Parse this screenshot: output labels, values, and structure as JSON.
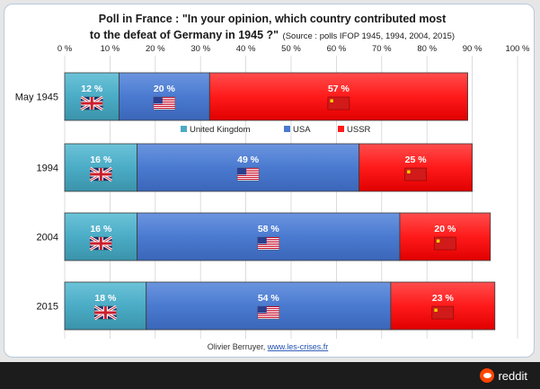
{
  "chart_data": {
    "type": "bar",
    "orientation": "horizontal",
    "stacked": true,
    "title_line1": "Poll in France : \"In your opinion, which country contributed most",
    "title_line2": "to the defeat of Germany in 1945 ?\"",
    "source_note": "(Source : polls IFOP 1945, 1994, 2004, 2015)",
    "xlim": [
      0,
      100
    ],
    "x_ticks": [
      0,
      10,
      20,
      30,
      40,
      50,
      60,
      70,
      80,
      90,
      100
    ],
    "x_tick_suffix": " %",
    "categories": [
      "May 1945",
      "1994",
      "2004",
      "2015"
    ],
    "series": [
      {
        "name": "United Kingdom",
        "color": "#4bacc6",
        "flag": "uk-flag",
        "values": [
          12,
          16,
          16,
          18
        ]
      },
      {
        "name": "USA",
        "color": "#4a7ad0",
        "flag": "us-flag",
        "values": [
          20,
          49,
          58,
          54
        ]
      },
      {
        "name": "USSR",
        "color": "#ff1a1a",
        "flag": "ussr-flag",
        "values": [
          57,
          25,
          20,
          23
        ]
      }
    ],
    "value_suffix": " %",
    "legend_position": "inside, below first bar",
    "grid": "vertical"
  },
  "credit": {
    "author": "Olivier Berruyer, ",
    "link": "www.les-crises.fr"
  },
  "footer": {
    "brand": "reddit"
  }
}
